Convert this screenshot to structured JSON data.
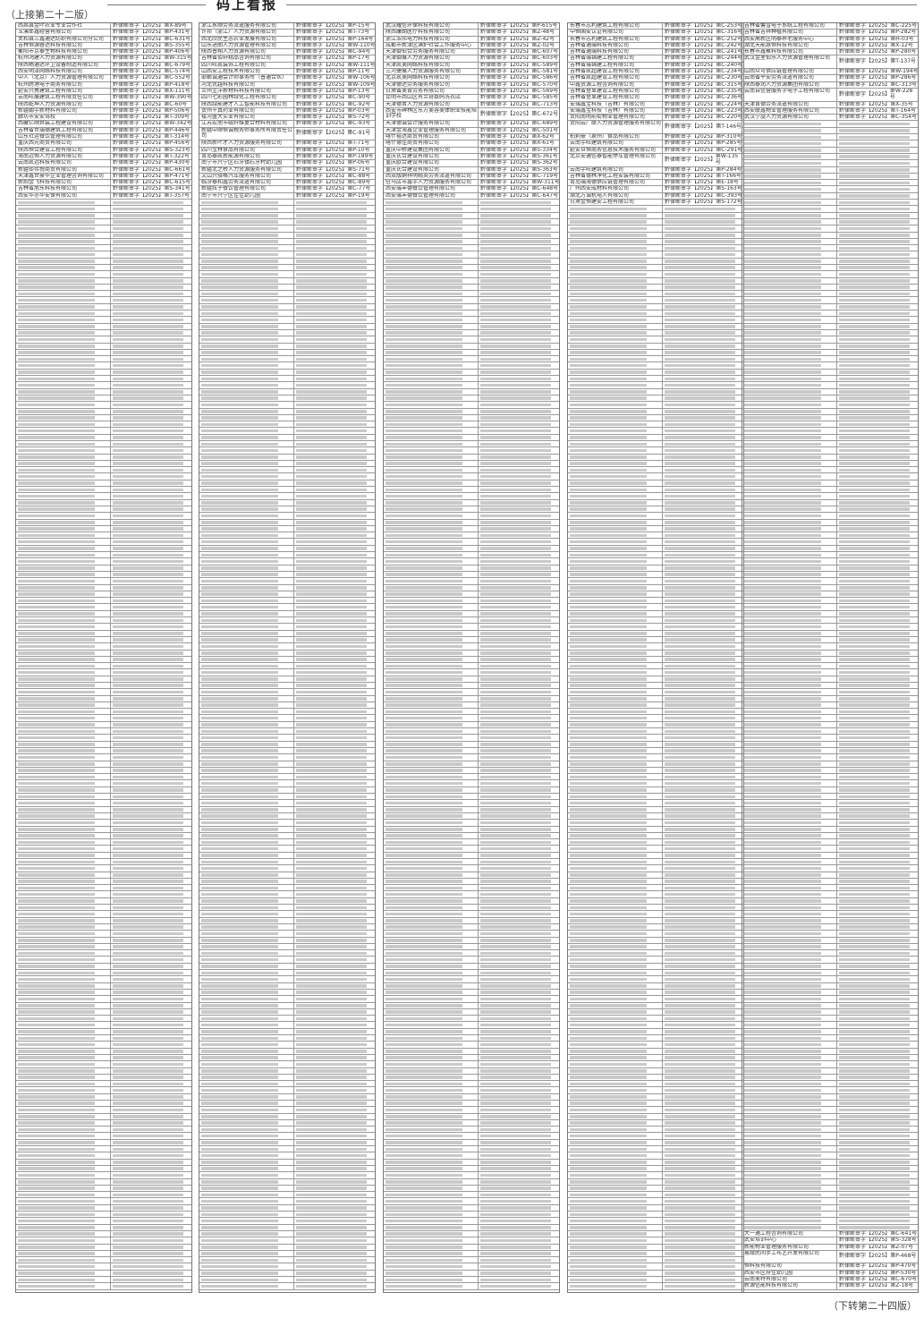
{
  "header": {
    "continued_from": "（上接第二十二版）",
    "masthead": "码上看报"
  },
  "footer": {
    "continued_to": "（下转第二十四版）"
  },
  "permit_prefix": "黔律断审字【2025】",
  "columns": [
    {
      "rows": [
        {
          "name": "西昌县金叶农业专业合作社",
          "permit": "第X-89号"
        },
        {
          "name": "玉溪郎鑫经营有限公司",
          "permit": "第P-431号"
        },
        {
          "name": "太和县三鑫通达纺织有限公司分公司",
          "permit": "第C-631号"
        },
        {
          "name": "吉林恒源睿达科技有限公司",
          "permit": "第S-355号"
        },
        {
          "name": "衡阳市京泰生物科技有限公司",
          "permit": "第P-406号"
        },
        {
          "name": "杭州鸿建人力资源有限公司",
          "permit": "第W-315号"
        },
        {
          "name": "陕西畅通达环卫设备制造有限公司",
          "permit": "第C-679号"
        },
        {
          "name": "西安明泽网络科技有限公司",
          "permit": "第C-574号"
        },
        {
          "name": "中人（北京）人力资源管理有限公司",
          "permit": "第C-552号"
        },
        {
          "name": "杭州跨港电子商务有限公司",
          "permit": "第P-418号"
        },
        {
          "name": "延安兴勇建筑工程有限公司",
          "permit": "第X-111号"
        },
        {
          "name": "云南旺展建筑工程有限责任公司",
          "permit": "第W-390号"
        },
        {
          "name": "陕西乾坤人力资源有限公司",
          "permit": "第C-60号"
        },
        {
          "name": "新疆翰宇新材料有限公司",
          "permit": "第P-506号"
        },
        {
          "name": "廊坊市安安驾校",
          "permit": "第T-309号"
        },
        {
          "name": "西藏亿顺井装工程建设有限公司",
          "permit": "第W-342号"
        },
        {
          "name": "吉林省世瑞德建筑工程有限公司",
          "permit": "第P-446号"
        },
        {
          "name": "山东社运餐饮管理有限公司",
          "permit": "第T-314号"
        },
        {
          "name": "重庆西元商贸有限公司",
          "permit": "第P-456号"
        },
        {
          "name": "陕西恒合建设工程有限公司",
          "permit": "第S-323号"
        },
        {
          "name": "海南远恒人力资源有限公司",
          "permit": "第T-322号"
        },
        {
          "name": "云南凯远科技有限公司",
          "permit": "第P-430号"
        },
        {
          "name": "新疆钜伟悦商贸有限公司",
          "permit": "第C-661号"
        },
        {
          "name": "天津鑫世豪华企业管理咨询有限公司",
          "permit": "第P-471号"
        },
        {
          "name": "新韵金飞科技有限公司",
          "permit": "第C-615号"
        },
        {
          "name": "吉林省旭东科技有限公司",
          "permit": "第S-341号"
        },
        {
          "name": "西安华亦华安保有限公司",
          "permit": "第T-357号"
        }
      ]
    },
    {
      "rows": [
        {
          "name": "浙江永顺劳务派遣服务有限公司",
          "permit": "第P-15号"
        },
        {
          "name": "许邦（浙江）人力资源有限公司",
          "permit": "第T-73号"
        },
        {
          "name": "西北欣民生态农业发展有限公司",
          "permit": "第P-164号"
        },
        {
          "name": "山东进朗人力资源管理有限公司",
          "permit": "第W-110号"
        },
        {
          "name": "陕西普翔人力资源有限公司",
          "permit": "第C-94号"
        },
        {
          "name": "吉林省佰轩精品咨询有限公司",
          "permit": "第P-17号"
        },
        {
          "name": "四川旺凯装饰工程有限公司",
          "permit": "第W-111号"
        },
        {
          "name": "山西安工程技术有限公司",
          "permit": "第P-11号"
        },
        {
          "name": "邯郸诚通会计师事务所（普通合伙）",
          "permit": "第W-106号"
        },
        {
          "name": "河北优越科技有限公司",
          "permit": "第W-109号"
        },
        {
          "name": "兰州圭洋新材料科技有限公司",
          "permit": "第P-13号"
        },
        {
          "name": "四川七彩园林绿化工程有限公司",
          "permit": "第C-90号"
        },
        {
          "name": "陕西绿能建才人工智能科技有限公司",
          "permit": "第C-92号"
        },
        {
          "name": "贵州十真药业有限公司",
          "permit": "第P-03号"
        },
        {
          "name": "楼河盛大实业有限公司",
          "permit": "第S-72号"
        },
        {
          "name": "江苏宏旭卡碳纤维复合材料有限公司",
          "permit": "第C-93号"
        },
        {
          "name": "新疆中顺恒诚税务师事务所有限责任公司",
          "permit": "第C-91号",
          "tall": true
        },
        {
          "name": "陕西新叶才人力资源服务有限公司",
          "permit": "第T-71号"
        },
        {
          "name": "四川宝林食品有限公司",
          "permit": "第P-10号"
        },
        {
          "name": "青岛泰凯新能源有限公司",
          "permit": "第P-189号"
        },
        {
          "name": "南宁市兴宁区石牙镇石牙村幼儿园",
          "permit": "第P-06号"
        },
        {
          "name": "新疆北之桥人力资源服务有限公司",
          "permit": "第S-71号"
        },
        {
          "name": "文山兴驿格汽车服务有限公司",
          "permit": "第C-88号"
        },
        {
          "name": "临汾泰和鑫劳务派遣有限公司",
          "permit": "第C-89号"
        },
        {
          "name": "新疆炫子餐饮管理有限公司",
          "permit": "第C-77号"
        },
        {
          "name": "南宁市兴宁区佳佳幼儿园",
          "permit": "第P-19号"
        }
      ]
    },
    {
      "rows": [
        {
          "name": "武汉耀信环保科技有限公司",
          "permit": "第P-615号"
        },
        {
          "name": "陕西康朗医疗科技有限公司",
          "permit": "第Z-48号"
        },
        {
          "name": "浙江浩伟电力科技有限公司",
          "permit": "第Z-42号"
        },
        {
          "name": "成都市新津区满护社会工作服务中心",
          "permit": "第Z-02号"
        },
        {
          "name": "天津御伯合劳务服务有限公司",
          "permit": "第C-607号"
        },
        {
          "name": "天津御展人力资源有限公司",
          "permit": "第C-603号"
        },
        {
          "name": "天津凯美网络科技有限公司",
          "permit": "第C-589号"
        },
        {
          "name": "三河捷展人力资源服务有限公司",
          "permit": "第C-581号"
        },
        {
          "name": "北京凯美网络科技有限公司",
          "permit": "第C-586号"
        },
        {
          "name": "天津德达劳务服务有限公司",
          "permit": "第C-570号"
        },
        {
          "name": "甘肃省美肯劳务有限公司",
          "permit": "第C-569号"
        },
        {
          "name": "昆明市西山区有兰奇数码洗衣店",
          "permit": "第C-585号"
        },
        {
          "name": "天津德晋人力资源有限公司",
          "permit": "第C-713号"
        },
        {
          "name": "西安市碑林区东方美容美体职业技能培训学校",
          "permit": "第C-672号",
          "tall": true
        },
        {
          "name": "天津德诚会计服务有限公司",
          "permit": "第C-689号"
        },
        {
          "name": "天津金海鑫企业管理服务有限公司",
          "permit": "第C-501号"
        },
        {
          "name": "喀什裕达商贸有限公司",
          "permit": "第X-62号"
        },
        {
          "name": "喀什德佳商贸有限公司",
          "permit": "第X-61号"
        },
        {
          "name": "重庆中桥建设集团有限公司",
          "permit": "第S-334号"
        },
        {
          "name": "重庆氏合建设有限公司",
          "permit": "第S-361号"
        },
        {
          "name": "重庆欧合建设有限公司",
          "permit": "第S-362号"
        },
        {
          "name": "重庆氏合建设有限公司",
          "permit": "第S-363号"
        },
        {
          "name": "西双版纳祥明精英劳务派遣有限公司",
          "permit": "第C-719号"
        },
        {
          "name": "驻马店市鑫宇人力资源服务有限公司",
          "permit": "第W-311号"
        },
        {
          "name": "西安瑞丰德餐饮管理有限公司",
          "permit": "第C-648号"
        },
        {
          "name": "西安瑞丰德餐饮管理有限公司",
          "permit": "第C-647号"
        }
      ]
    },
    {
      "rows": [
        {
          "name": "长春市志利建筑工程有限公司",
          "permit": "第C-253号"
        },
        {
          "name": "中恒国安认证有限公司",
          "permit": "第C-316号"
        },
        {
          "name": "长春市志利建筑工程有限公司",
          "permit": "第C-252号"
        },
        {
          "name": "吉林省通瑞科技有限公司",
          "permit": "第C-242号"
        },
        {
          "name": "吉林省通瑞科技有限公司",
          "permit": "第C-241号"
        },
        {
          "name": "吉林省瑞锦建工程有限公司",
          "permit": "第C-244号"
        },
        {
          "name": "吉林省瑞锦建工程有限公司",
          "permit": "第C-240号"
        },
        {
          "name": "吉林省凯超建设工程有限公司",
          "permit": "第C-234号"
        },
        {
          "name": "吉林省凯超建设工程有限公司",
          "permit": "第C-230号"
        },
        {
          "name": "中鑫资源工程咨询有限公司",
          "permit": "第C-315号"
        },
        {
          "name": "吉林省登显建设工程有限公司",
          "permit": "第C-235号"
        },
        {
          "name": "吉林省登显建设工程有限公司",
          "permit": "第C-236号"
        },
        {
          "name": "安瑞鑫宝科技（吉林）有限公司",
          "permit": "第C-224号"
        },
        {
          "name": "安瑞鑫宝科技（吉林）有限公司",
          "permit": "第C-223号"
        },
        {
          "name": "贵阳南明前街物业管理有限公司",
          "permit": "第C-220号"
        },
        {
          "name": "贵阳云广联人力资源管理服务有限公司",
          "permit": "第T-146号",
          "tall": true
        },
        {
          "name": "柏莉豪（泉州）食品有限公司",
          "permit": "第P-310号"
        },
        {
          "name": "云南宇旺建筑有限公司",
          "permit": "第P-285号"
        },
        {
          "name": "延安旦恒商务信息技术服务有限公司",
          "permit": "第C-291号"
        },
        {
          "name": "北京安通信泰智能停车管理有限公司",
          "permit": "第W-135号",
          "tall": true
        },
        {
          "name": "云南宇旺建筑有限公司",
          "permit": "第P-284号"
        },
        {
          "name": "吉林省德林净化工程安装有限公司",
          "permit": "第T-166号"
        },
        {
          "name": "青岛瑞海德供应链管理有限公司",
          "permit": "第E-18号"
        },
        {
          "name": "广州西安成材料有限公司",
          "permit": "第S-163号"
        },
        {
          "name": "湖北方诚机电人有限公司",
          "permit": "第C-393号"
        },
        {
          "name": "甘肃金恒建安工程有限公司",
          "permit": "第S-172号"
        }
      ]
    },
    {
      "rows": [
        {
          "name": "吉林省馨雪电子系统工程有限公司",
          "permit": "第C-225号"
        },
        {
          "name": "吉林省吉祥种植有限公司",
          "permit": "第P-282号"
        },
        {
          "name": "西安高新区明泰养老服务中心",
          "permit": "第H-03号"
        },
        {
          "name": "湖北天能惠恒科技有限公司",
          "permit": "第X-12号"
        },
        {
          "name": "长春市鑫聚科技有限公司",
          "permit": "第P-280号"
        },
        {
          "name": "武汉金里伯乐人力资源管理有限公司",
          "permit": "第T-137号",
          "tall": true
        },
        {
          "name": "山西众可供应链管理有限公司",
          "permit": "第W-194号"
        },
        {
          "name": "云南省平安劳务派遣有限公司",
          "permit": "第P-286号"
        },
        {
          "name": "陕西泰润人力资源集团有限公司",
          "permit": "第C-313号"
        },
        {
          "name": "云南自信营服务字电子工程有限公司",
          "permit": "第W-228号",
          "tall": true
        },
        {
          "name": "天津首德劳务派遣有限公司",
          "permit": "第X-35号"
        },
        {
          "name": "西安联鑫物业管理服务有限公司",
          "permit": "第T-164号"
        },
        {
          "name": "武汉宁旋人力资源有限公司",
          "permit": "第C-354号"
        }
      ],
      "tail_rows": [
        {
          "name": "大一通工程咨询有限公司",
          "permit": "第C-641号"
        },
        {
          "name": "武安培训中心",
          "permit": "第S-328号"
        },
        {
          "name": "新能物业管理服务有限公司",
          "permit": "第Z-07号"
        },
        {
          "name": "易缘民间手工布艺开发有限公司",
          "permit": "第P-468号",
          "tall": true
        },
        {
          "name": "恒科技有限公司",
          "permit": "第P-470号"
        },
        {
          "name": "西安市区府佳幼儿园",
          "permit": "第P-530号"
        },
        {
          "name": "云南美特有限公司",
          "permit": "第C-670号"
        },
        {
          "name": "新源信能科技有限公司",
          "permit": "第Z-18号"
        }
      ]
    }
  ]
}
